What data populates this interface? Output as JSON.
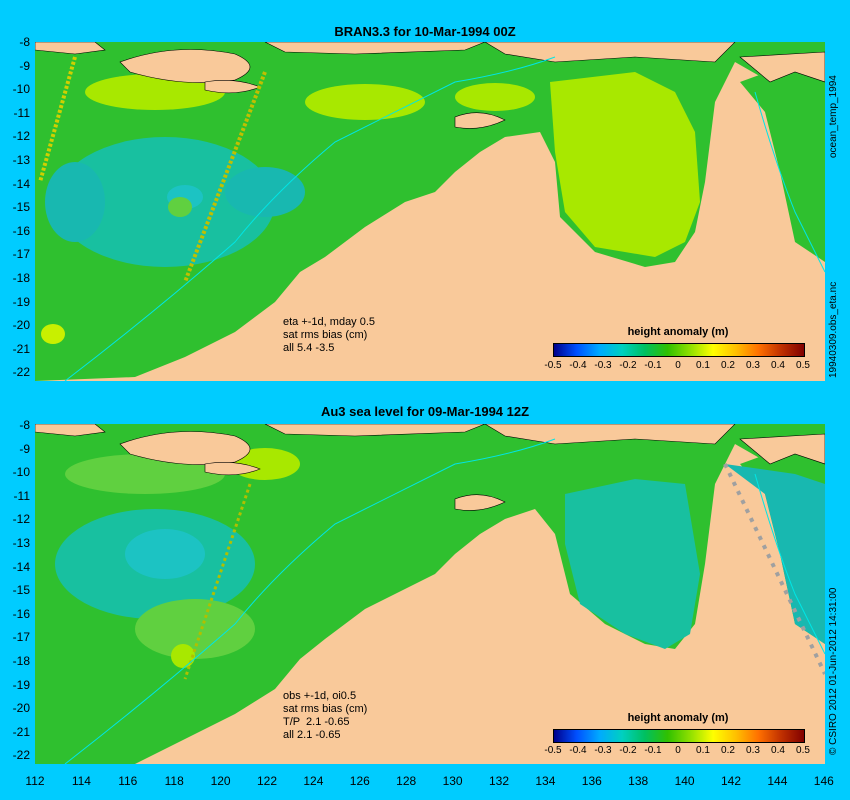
{
  "top": {
    "title": "BRAN3.3  for 10-Mar-1994 00Z",
    "note": "eta +-1d, mday 0.5\nsat rms bias (cm)\nall 5.4 -3.5",
    "colorbar_title": "height anomaly (m)"
  },
  "bottom": {
    "title": "Au3 sea level  for 09-Mar-1994 12Z",
    "note": "obs +-1d, oi0.5\nsat rms bias (cm)\nT/P  2.1 -0.65\nall 2.1 -0.65",
    "colorbar_title": "height anomaly (m)"
  },
  "right_labels": {
    "top_upper": "ocean_temp_1994",
    "top_lower": "19940309.obs_eta.nc",
    "bottom": "© CSIRO 2012  01-Jun-2012 14:31:00"
  },
  "y_ticks": [
    "-8",
    "-9",
    "-10",
    "-11",
    "-12",
    "-13",
    "-14",
    "-15",
    "-16",
    "-17",
    "-18",
    "-19",
    "-20",
    "-21",
    "-22"
  ],
  "x_ticks": [
    "112",
    "114",
    "116",
    "118",
    "120",
    "122",
    "124",
    "126",
    "128",
    "130",
    "132",
    "134",
    "136",
    "138",
    "140",
    "142",
    "144",
    "146"
  ],
  "colorbar_ticks": [
    "-0.5",
    "-0.4",
    "-0.3",
    "-0.2",
    "-0.1",
    "0",
    "0.1",
    "0.2",
    "0.3",
    "0.4",
    "0.5"
  ],
  "colors": {
    "background": "#00ccff",
    "land": "#f9c99a",
    "ocean_base": "#22bb22",
    "anomaly_pos": "#c8f000",
    "anomaly_neg": "#11bbaa"
  }
}
